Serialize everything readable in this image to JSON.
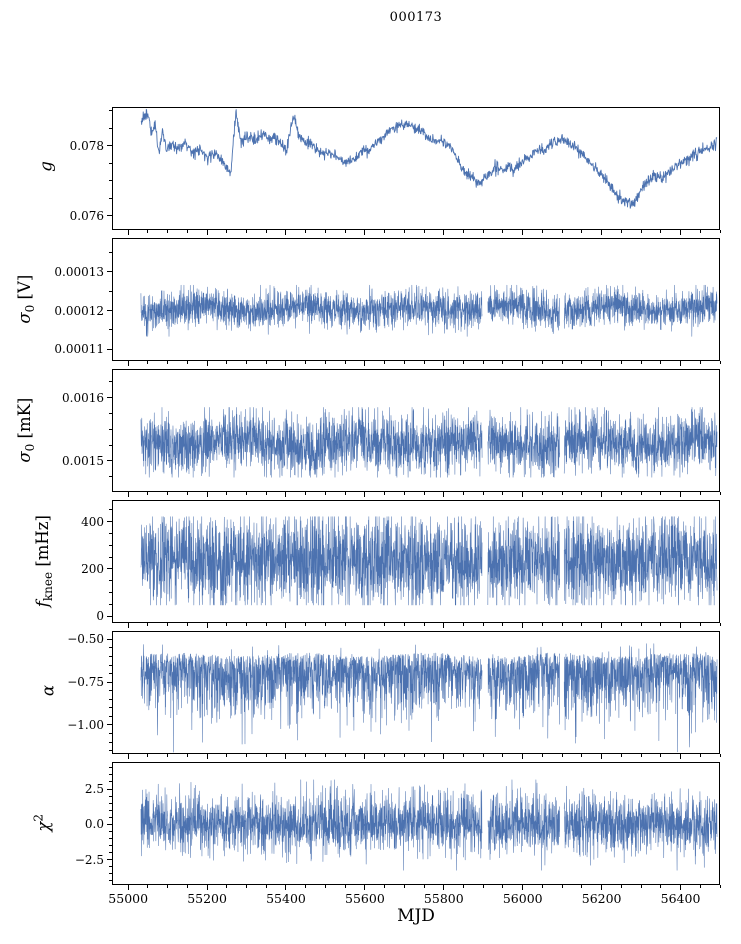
{
  "title": "000173",
  "chart_data": {
    "type": "line",
    "title": "000173",
    "xlabel": "MJD",
    "line_color": "#4c72b0",
    "axis_color": "#000000",
    "x_range": [
      54959,
      56500
    ],
    "x_data_range": [
      55030,
      56495
    ],
    "x_minor_step": 50,
    "x_ticks": [
      {
        "v": 55000,
        "label": "55000"
      },
      {
        "v": 55200,
        "label": "55200"
      },
      {
        "v": 55400,
        "label": "55400"
      },
      {
        "v": 55600,
        "label": "55600"
      },
      {
        "v": 55800,
        "label": "55800"
      },
      {
        "v": 56000,
        "label": "56000"
      },
      {
        "v": 56200,
        "label": "56200"
      },
      {
        "v": 56400,
        "label": "56400"
      }
    ],
    "gaps": [
      [
        55898,
        55912
      ],
      [
        56095,
        56106
      ]
    ],
    "panels": [
      {
        "id": "g",
        "label_text": "g",
        "label": {
          "italic": "g"
        },
        "ylim": [
          0.0756,
          0.0791
        ],
        "yticks": [
          {
            "v": 0.076,
            "label": "0.076"
          },
          {
            "v": 0.078,
            "label": "0.078"
          }
        ],
        "y_minor_step": 0.0005,
        "series": {
          "kind": "trend",
          "jitter": 8e-05,
          "points": [
            [
              55030,
              0.0787
            ],
            [
              55040,
              0.0789
            ],
            [
              55048,
              0.0789
            ],
            [
              55058,
              0.0783
            ],
            [
              55066,
              0.0786
            ],
            [
              55075,
              0.0778
            ],
            [
              55085,
              0.0784
            ],
            [
              55095,
              0.0779
            ],
            [
              55110,
              0.0781
            ],
            [
              55125,
              0.0779
            ],
            [
              55140,
              0.0781
            ],
            [
              55160,
              0.0778
            ],
            [
              55180,
              0.0779
            ],
            [
              55200,
              0.0777
            ],
            [
              55220,
              0.0778
            ],
            [
              55240,
              0.0775
            ],
            [
              55258,
              0.0772
            ],
            [
              55272,
              0.079
            ],
            [
              55285,
              0.0781
            ],
            [
              55300,
              0.0783
            ],
            [
              55320,
              0.0782
            ],
            [
              55340,
              0.0783
            ],
            [
              55360,
              0.0782
            ],
            [
              55380,
              0.0782
            ],
            [
              55400,
              0.0779
            ],
            [
              55418,
              0.0789
            ],
            [
              55432,
              0.0783
            ],
            [
              55450,
              0.0781
            ],
            [
              55470,
              0.078
            ],
            [
              55490,
              0.0778
            ],
            [
              55510,
              0.0778
            ],
            [
              55530,
              0.0777
            ],
            [
              55550,
              0.0775
            ],
            [
              55570,
              0.0776
            ],
            [
              55590,
              0.0778
            ],
            [
              55610,
              0.0779
            ],
            [
              55630,
              0.0781
            ],
            [
              55650,
              0.0783
            ],
            [
              55670,
              0.0785
            ],
            [
              55690,
              0.0786
            ],
            [
              55710,
              0.0786
            ],
            [
              55730,
              0.0785
            ],
            [
              55750,
              0.0784
            ],
            [
              55770,
              0.0781
            ],
            [
              55790,
              0.0782
            ],
            [
              55810,
              0.0781
            ],
            [
              55830,
              0.0777
            ],
            [
              55850,
              0.0773
            ],
            [
              55870,
              0.0771
            ],
            [
              55890,
              0.0769
            ],
            [
              55905,
              0.0771
            ],
            [
              55920,
              0.0772
            ],
            [
              55935,
              0.0774
            ],
            [
              55950,
              0.0773
            ],
            [
              55965,
              0.0774
            ],
            [
              55980,
              0.0773
            ],
            [
              56000,
              0.0775
            ],
            [
              56020,
              0.0777
            ],
            [
              56040,
              0.0779
            ],
            [
              56060,
              0.0779
            ],
            [
              56080,
              0.0781
            ],
            [
              56100,
              0.0782
            ],
            [
              56120,
              0.0781
            ],
            [
              56140,
              0.0779
            ],
            [
              56160,
              0.0777
            ],
            [
              56180,
              0.0774
            ],
            [
              56200,
              0.0772
            ],
            [
              56220,
              0.0769
            ],
            [
              56240,
              0.0766
            ],
            [
              56260,
              0.0764
            ],
            [
              56280,
              0.0763
            ],
            [
              56300,
              0.0767
            ],
            [
              56320,
              0.077
            ],
            [
              56340,
              0.0771
            ],
            [
              56360,
              0.0771
            ],
            [
              56380,
              0.0773
            ],
            [
              56400,
              0.0775
            ],
            [
              56420,
              0.0776
            ],
            [
              56440,
              0.0778
            ],
            [
              56460,
              0.0779
            ],
            [
              56480,
              0.078
            ],
            [
              56495,
              0.0781
            ]
          ]
        }
      },
      {
        "id": "sigma0_V",
        "label_text": "σ0 [V]",
        "label": {
          "italic": "σ",
          "sub": "0",
          "unit": " [V]"
        },
        "ylim": [
          0.000107,
          0.0001387
        ],
        "yticks": [
          {
            "v": 0.00011,
            "label": "0.00011"
          },
          {
            "v": 0.00012,
            "label": "0.00012"
          },
          {
            "v": 0.00013,
            "label": "0.00013"
          }
        ],
        "y_minor_step": 5e-06,
        "series": {
          "kind": "noise",
          "center": 0.0001205,
          "sigma": 2.4e-06,
          "clip": [
            0.0001132,
            0.0001266
          ],
          "wave_amp": 8e-07,
          "wave_period": 260,
          "spike_down_p": 0.004,
          "spike_down": 4e-06
        }
      },
      {
        "id": "sigma0_mK",
        "label_text": "σ0 [mK]",
        "label": {
          "italic": "σ",
          "sub": "0",
          "unit": " [mK]"
        },
        "ylim": [
          0.001451,
          0.001645
        ],
        "yticks": [
          {
            "v": 0.0015,
            "label": "0.0015"
          },
          {
            "v": 0.0016,
            "label": "0.0016"
          }
        ],
        "y_minor_step": 2.5e-05,
        "series": {
          "kind": "noise",
          "center": 0.001528,
          "sigma": 2.4e-05,
          "clip": [
            0.001473,
            0.001585
          ],
          "wave_amp": 6e-06,
          "wave_period": 300,
          "spike_down_p": 0.003,
          "spike_down": 3e-05
        }
      },
      {
        "id": "f_knee",
        "label_text": "fknee [mHz]",
        "label": {
          "italic": "f",
          "sub": "knee",
          "unit": " [mHz]"
        },
        "ylim": [
          -28,
          491
        ],
        "yticks": [
          {
            "v": 0,
            "label": "0"
          },
          {
            "v": 200,
            "label": "200"
          },
          {
            "v": 400,
            "label": "400"
          }
        ],
        "y_minor_step": 50,
        "series": {
          "kind": "noise",
          "center": 238,
          "sigma": 98,
          "clip": [
            45,
            424
          ],
          "wave_amp": 8,
          "wave_period": 350,
          "spike_down_p": 0.006,
          "spike_down": 90
        }
      },
      {
        "id": "alpha",
        "label_text": "α",
        "label": {
          "italic": "α"
        },
        "ylim": [
          -1.17,
          -0.451
        ],
        "yticks": [
          {
            "v": -0.5,
            "label": "−0.50"
          },
          {
            "v": -0.75,
            "label": "−0.75"
          },
          {
            "v": -1.0,
            "label": "−1.00"
          }
        ],
        "y_minor_step": 0.05,
        "series": {
          "kind": "skew",
          "top": -0.585,
          "scale": 0.16,
          "clip": [
            -1.165,
            -0.52
          ],
          "wave_amp": 0.01,
          "wave_period": 320,
          "spike_up_p": 0.01,
          "spike_up": 0.07,
          "spike_down_p": 0.02,
          "spike_down": 0.25
        }
      },
      {
        "id": "chi2",
        "label_text": "χ2",
        "label": {
          "italic": "χ",
          "sup": "2"
        },
        "ylim": [
          -4.29,
          4.41
        ],
        "yticks": [
          {
            "v": 2.5,
            "label": "2.5"
          },
          {
            "v": 0,
            "label": "0.0"
          },
          {
            "v": -2.5,
            "label": "−2.5"
          }
        ],
        "y_minor_step": 0.5,
        "series": {
          "kind": "noise",
          "center": 0.05,
          "sigma": 1.05,
          "clip": [
            -3.3,
            3.2
          ],
          "wave_amp": 0.05,
          "wave_period": 400,
          "spike_down_p": 0.003,
          "spike_down": 0.8
        }
      }
    ]
  }
}
